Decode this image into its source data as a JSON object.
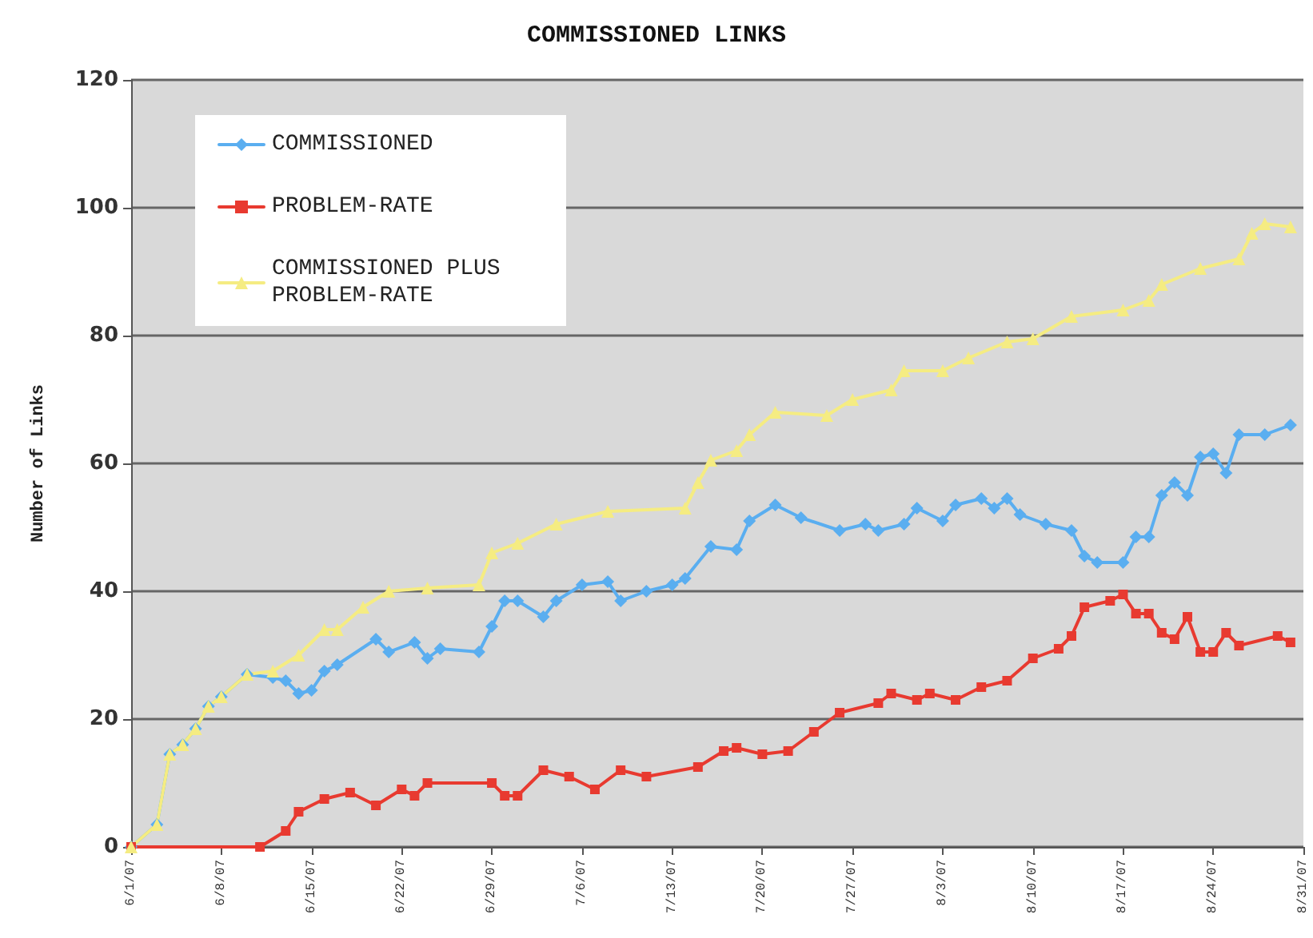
{
  "chart_data": {
    "type": "line",
    "title": "COMMISSIONED LINKS",
    "ylabel": "Number of Links",
    "xlim": [
      "--06-01",
      "--08-31"
    ],
    "xticks": [
      {
        "value": "--06-01",
        "label": "6/1/07"
      },
      {
        "value": "--06-08",
        "label": "6/8/07"
      },
      {
        "value": "--06-15",
        "label": "6/15/07"
      },
      {
        "value": "--06-22",
        "label": "6/22/07"
      },
      {
        "value": "--06-29",
        "label": "6/29/07"
      },
      {
        "value": "--07-06",
        "label": "7/6/07"
      },
      {
        "value": "--07-13",
        "label": "7/13/07"
      },
      {
        "value": "--07-20",
        "label": "7/20/07"
      },
      {
        "value": "--07-27",
        "label": "7/27/07"
      },
      {
        "value": "--08-03",
        "label": "8/3/07"
      },
      {
        "value": "--08-10",
        "label": "8/10/07"
      },
      {
        "value": "--08-17",
        "label": "8/17/07"
      },
      {
        "value": "--08-24",
        "label": "8/24/07"
      },
      {
        "value": "--08-31",
        "label": "8/31/07"
      }
    ],
    "ylim": [
      0,
      120
    ],
    "yticks": [
      0,
      20,
      40,
      60,
      80,
      100,
      120
    ],
    "grid": "y",
    "legend": "top left",
    "line_style": "solid",
    "series": [
      {
        "name": "COMMISSIONED",
        "color": "#5aaef0",
        "marker": "diamond",
        "x": [
          "--06-01",
          "--06-03",
          "--06-04",
          "--06-05",
          "--06-06",
          "--06-07",
          "--06-08",
          "--06-10",
          "--06-12",
          "--06-13",
          "--06-14",
          "--06-15",
          "--06-16",
          "--06-17",
          "--06-20",
          "--06-21",
          "--06-23",
          "--06-24",
          "--06-25",
          "--06-28",
          "--06-29",
          "--06-30",
          "--07-01",
          "--07-03",
          "--07-04",
          "--07-06",
          "--07-08",
          "--07-09",
          "--07-11",
          "--07-13",
          "--07-14",
          "--07-16",
          "--07-18",
          "--07-19",
          "--07-21",
          "--07-23",
          "--07-26",
          "--07-28",
          "--07-29",
          "--07-31",
          "--08-01",
          "--08-03",
          "--08-04",
          "--08-06",
          "--08-07",
          "--08-08",
          "--08-09",
          "--08-11",
          "--08-13",
          "--08-14",
          "--08-15",
          "--08-17",
          "--08-18",
          "--08-19",
          "--08-20",
          "--08-21",
          "--08-22",
          "--08-23",
          "--08-24",
          "--08-25",
          "--08-26",
          "--08-28",
          "--08-30"
        ],
        "values": [
          0,
          3.5,
          14.5,
          16,
          18.5,
          22,
          23.5,
          27,
          26.5,
          26,
          24,
          24.5,
          27.5,
          28.5,
          32.5,
          30.5,
          32,
          29.5,
          31,
          30.5,
          34.5,
          38.5,
          38.5,
          36,
          38.5,
          41,
          41.5,
          38.5,
          40,
          41,
          42,
          47,
          46.5,
          51,
          53.5,
          51.5,
          49.5,
          50.5,
          49.5,
          50.5,
          53,
          51,
          53.5,
          54.5,
          53,
          54.5,
          52,
          50.5,
          49.5,
          45.5,
          44.5,
          44.5,
          48.5,
          48.5,
          55,
          57,
          55,
          61,
          61.5,
          58.5,
          64.5,
          64.5,
          66
        ]
      },
      {
        "name": "PROBLEM-RATE",
        "color": "#e83a30",
        "marker": "square",
        "x": [
          "--06-01",
          "--06-11",
          "--06-13",
          "--06-14",
          "--06-16",
          "--06-18",
          "--06-20",
          "--06-22",
          "--06-23",
          "--06-24",
          "--06-29",
          "--06-30",
          "--07-01",
          "--07-03",
          "--07-05",
          "--07-07",
          "--07-09",
          "--07-11",
          "--07-15",
          "--07-17",
          "--07-18",
          "--07-20",
          "--07-22",
          "--07-24",
          "--07-26",
          "--07-29",
          "--07-30",
          "--08-01",
          "--08-02",
          "--08-04",
          "--08-06",
          "--08-08",
          "--08-10",
          "--08-12",
          "--08-13",
          "--08-14",
          "--08-16",
          "--08-17",
          "--08-18",
          "--08-19",
          "--08-20",
          "--08-21",
          "--08-22",
          "--08-23",
          "--08-24",
          "--08-25",
          "--08-26",
          "--08-29",
          "--08-30"
        ],
        "values": [
          0,
          0,
          2.5,
          5.5,
          7.5,
          8.5,
          6.5,
          9,
          8,
          10,
          10,
          8,
          8,
          12,
          11,
          9,
          12,
          11,
          12.5,
          15,
          15.5,
          14.5,
          15,
          18,
          21,
          22.5,
          24,
          23,
          24,
          23,
          25,
          26,
          29.5,
          31,
          33,
          37.5,
          38.5,
          39.5,
          36.5,
          36.5,
          33.5,
          32.5,
          36,
          30.5,
          30.5,
          33.5,
          31.5,
          33,
          32
        ]
      },
      {
        "name": "COMMISSIONED PLUS PROBLEM-RATE",
        "color": "#f5ec82",
        "marker": "triangle",
        "x": [
          "--06-01",
          "--06-03",
          "--06-04",
          "--06-05",
          "--06-06",
          "--06-07",
          "--06-08",
          "--06-10",
          "--06-12",
          "--06-14",
          "--06-16",
          "--06-17",
          "--06-19",
          "--06-21",
          "--06-24",
          "--06-28",
          "--06-29",
          "--07-01",
          "--07-04",
          "--07-08",
          "--07-14",
          "--07-15",
          "--07-16",
          "--07-18",
          "--07-19",
          "--07-21",
          "--07-25",
          "--07-27",
          "--07-30",
          "--07-31",
          "--08-03",
          "--08-05",
          "--08-08",
          "--08-10",
          "--08-13",
          "--08-17",
          "--08-19",
          "--08-20",
          "--08-23",
          "--08-26",
          "--08-27",
          "--08-28",
          "--08-30"
        ],
        "values": [
          0,
          3.5,
          14.5,
          16,
          18.5,
          22,
          23.5,
          27,
          27.5,
          30,
          34,
          34,
          37.5,
          40,
          40.5,
          41,
          46,
          47.5,
          50.5,
          52.5,
          53,
          57,
          60.5,
          62,
          64.5,
          68,
          67.5,
          70,
          71.5,
          74.5,
          74.5,
          76.5,
          79,
          79.5,
          83,
          84,
          85.5,
          88,
          90.5,
          92,
          96,
          97.5,
          97
        ]
      }
    ]
  }
}
